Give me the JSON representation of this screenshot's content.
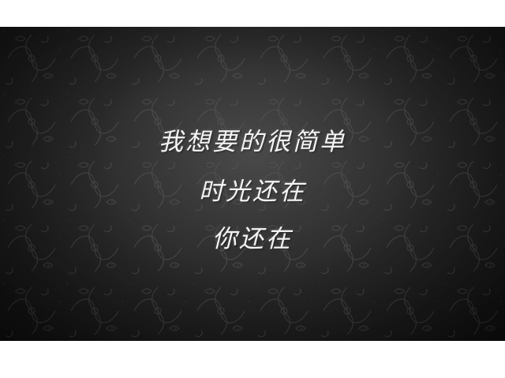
{
  "poem": {
    "line1": "我想要的很简单",
    "line2": "时光还在",
    "line3": "你还在"
  },
  "colors": {
    "background_dark": "#1f1f1f",
    "text": "#f4f4f4",
    "page": "#ffffff"
  }
}
